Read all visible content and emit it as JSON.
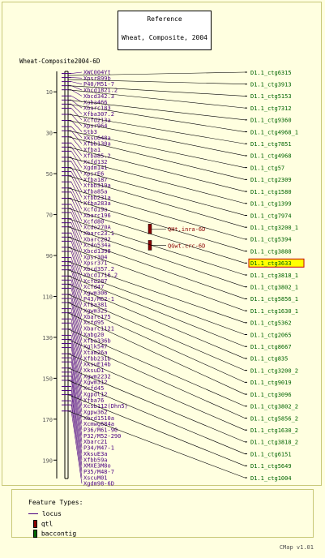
{
  "reference": {
    "title": "Reference",
    "subtitle": "Wheat, Composite, 2004"
  },
  "map_title": "Wheat-Composite2004-6D",
  "scale": {
    "ticks": [
      "10",
      "30",
      "50",
      "70",
      "90",
      "110",
      "130",
      "150",
      "170",
      "190"
    ],
    "min": 0,
    "max": 199
  },
  "markers": [
    {
      "label": "XWC004Yt",
      "pos": 1
    },
    {
      "label": "Xpsr899b",
      "pos": 3
    },
    {
      "label": "P40/M51-7",
      "pos": 5
    },
    {
      "label": "Xbcd1821.2",
      "pos": 7
    },
    {
      "label": "Xbcd342.3",
      "pos": 9
    },
    {
      "label": "Xaba466",
      "pos": 12
    },
    {
      "label": "Xbarc183",
      "pos": 14
    },
    {
      "label": "Xfba307.2",
      "pos": 16
    },
    {
      "label": "Xcfd213a",
      "pos": 18
    },
    {
      "label": "Xpsr964",
      "pos": 21
    },
    {
      "label": "Stb3",
      "pos": 24
    },
    {
      "label": "Xksu648a",
      "pos": 27
    },
    {
      "label": "Xfbb130a",
      "pos": 29
    },
    {
      "label": "Xfba1",
      "pos": 32
    },
    {
      "label": "Xfba85.2",
      "pos": 35
    },
    {
      "label": "Xcfd132",
      "pos": 37
    },
    {
      "label": "Xgdm141",
      "pos": 39
    },
    {
      "label": "XpsrE6",
      "pos": 42
    },
    {
      "label": "Xfba187",
      "pos": 44
    },
    {
      "label": "Xfbb319a",
      "pos": 47
    },
    {
      "label": "Xfba85a",
      "pos": 49
    },
    {
      "label": "Xfbb231a",
      "pos": 51
    },
    {
      "label": "Xfba283a",
      "pos": 54
    },
    {
      "label": "Xcfd19a",
      "pos": 57
    },
    {
      "label": "Xbarc196",
      "pos": 59
    },
    {
      "label": "Xcfd80",
      "pos": 62
    },
    {
      "label": "Xcdo270A",
      "pos": 65
    },
    {
      "label": "Xbarc23.1",
      "pos": 67
    },
    {
      "label": "Xbarc202",
      "pos": 69
    },
    {
      "label": "Xcdo534a",
      "pos": 72
    },
    {
      "label": "Xbcd1398",
      "pos": 74
    },
    {
      "label": "Xpsr304",
      "pos": 76
    },
    {
      "label": "Xpsr371",
      "pos": 79
    },
    {
      "label": "Xbcd357.2",
      "pos": 81
    },
    {
      "label": "Xbcd1716.2",
      "pos": 83
    },
    {
      "label": "Xcfd287",
      "pos": 86
    },
    {
      "label": "Xcfd47",
      "pos": 88
    },
    {
      "label": "Xgwm306",
      "pos": 91
    },
    {
      "label": "P43/M62-1",
      "pos": 93
    },
    {
      "label": "Xfba381",
      "pos": 95
    },
    {
      "label": "Xgwm325",
      "pos": 97
    },
    {
      "label": "Xbarc175",
      "pos": 100
    },
    {
      "label": "Xcfd95",
      "pos": 102
    },
    {
      "label": "Xbarc1121",
      "pos": 104
    },
    {
      "label": "Xabg20",
      "pos": 106
    },
    {
      "label": "Xfba336b",
      "pos": 109
    },
    {
      "label": "Xglk547",
      "pos": 111
    },
    {
      "label": "Xtam26a",
      "pos": 113
    },
    {
      "label": "Xfbb231b",
      "pos": 116
    },
    {
      "label": "XksuE14b",
      "pos": 118
    },
    {
      "label": "XksuD1",
      "pos": 121
    },
    {
      "label": "Xgwm2232",
      "pos": 123
    },
    {
      "label": "Xgwm312",
      "pos": 126
    },
    {
      "label": "Xcfd45",
      "pos": 129
    },
    {
      "label": "Xgpdl12",
      "pos": 131
    },
    {
      "label": "Xfba76",
      "pos": 133
    },
    {
      "label": "Xcsb112(Dhn5)",
      "pos": 135
    },
    {
      "label": "Xgpw362",
      "pos": 138
    },
    {
      "label": "Xbcd1510a",
      "pos": 140
    },
    {
      "label": "Xcmwg684a",
      "pos": 142
    },
    {
      "label": "P36/M61-90",
      "pos": 145
    },
    {
      "label": "P32/M52-290",
      "pos": 147
    },
    {
      "label": "Xbarc21",
      "pos": 149
    },
    {
      "label": "P34/M47-1",
      "pos": 151
    },
    {
      "label": "XksuE3a",
      "pos": 154
    },
    {
      "label": "Xfbb59a",
      "pos": 156
    },
    {
      "label": "XMXE3M8o",
      "pos": 158
    },
    {
      "label": "P35/M48-7",
      "pos": 161
    },
    {
      "label": "XscuM01",
      "pos": 163
    },
    {
      "label": "Xgdm98-6D",
      "pos": 166
    }
  ],
  "qtls": [
    {
      "label": "QHt.inra-6D",
      "pos": 77
    },
    {
      "label": "QGwt.crc-6D",
      "pos": 85
    }
  ],
  "contigs": [
    {
      "label": "D1.1_ctg6315",
      "pos": 0
    },
    {
      "label": "D1.1_ctg3913",
      "pos": 7
    },
    {
      "label": "D1.1_ctg5153",
      "pos": 14
    },
    {
      "label": "D1.1_ctg7312",
      "pos": 21
    },
    {
      "label": "D1.1_ctg9360",
      "pos": 28
    },
    {
      "label": "D1.1_ctg4968_1",
      "pos": 35
    },
    {
      "label": "D1.1_ctg7851",
      "pos": 42
    },
    {
      "label": "D1.1_ctg4968",
      "pos": 49
    },
    {
      "label": "D1.1_ctg57",
      "pos": 56
    },
    {
      "label": "D1.1_ctg2309",
      "pos": 63
    },
    {
      "label": "D1.1_ctg1580",
      "pos": 70
    },
    {
      "label": "D1.1_ctg1399",
      "pos": 77
    },
    {
      "label": "D1.1_ctg7974",
      "pos": 84
    },
    {
      "label": "D1.1_ctg3200_1",
      "pos": 91
    },
    {
      "label": "D1.1_ctg5394",
      "pos": 98
    },
    {
      "label": "D1.1_ctg3888",
      "pos": 105
    },
    {
      "label": "D1.1_ctg3633",
      "pos": 112,
      "highlight": true
    },
    {
      "label": "D1.1_ctg3818_1",
      "pos": 119
    },
    {
      "label": "D1.1_ctg3802_1",
      "pos": 126
    },
    {
      "label": "D1.1_ctg5856_1",
      "pos": 133
    },
    {
      "label": "D1.1_ctg1630_1",
      "pos": 140
    },
    {
      "label": "D1.1_ctg5362",
      "pos": 147
    },
    {
      "label": "D1.1_ctg2065",
      "pos": 154
    },
    {
      "label": "D1.1_ctg8667",
      "pos": 161
    },
    {
      "label": "D1.1_ctg835",
      "pos": 168
    },
    {
      "label": "D1.1_ctg3200_2",
      "pos": 175
    },
    {
      "label": "D1.1_ctg9019",
      "pos": 182
    },
    {
      "label": "D1.1_ctg3096",
      "pos": 189
    },
    {
      "label": "D1.1_ctg3802_2",
      "pos": 196
    },
    {
      "label": "D1.1_ctg5856_2",
      "pos": 203
    },
    {
      "label": "D1.1_ctg1630_2",
      "pos": 210
    },
    {
      "label": "D1.1_ctg3818_2",
      "pos": 217
    },
    {
      "label": "D1.1_ctg6151",
      "pos": 224
    },
    {
      "label": "D1.1_ctg5649",
      "pos": 231
    },
    {
      "label": "D1.1_ctg1004",
      "pos": 238
    }
  ],
  "contig_anchor": [
    2,
    4,
    7,
    9,
    14,
    16,
    21,
    24,
    29,
    32,
    37,
    42,
    47,
    51,
    57,
    62,
    67,
    72,
    76,
    81,
    86,
    93,
    97,
    100,
    104,
    109,
    113,
    118,
    126,
    131,
    138,
    145,
    151,
    158,
    166
  ],
  "legend": {
    "title": "Feature Types:",
    "items": [
      {
        "label": "locus",
        "kind": "line",
        "color": "#4b0082"
      },
      {
        "label": "qtl",
        "kind": "box",
        "color": "#8b0000"
      },
      {
        "label": "baccontig",
        "kind": "box",
        "color": "#006400"
      }
    ]
  },
  "footer": "CMap v1.01",
  "colors": {
    "marker": "#4b0082",
    "contig": "#006400",
    "qtl": "#8b0000",
    "highlight": "#ffff00"
  }
}
